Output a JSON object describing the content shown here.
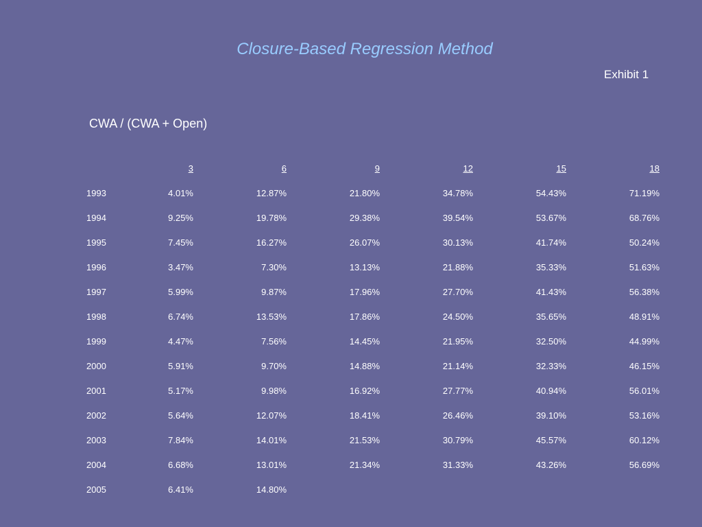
{
  "slide": {
    "title": "Closure-Based Regression Method",
    "exhibit": "Exhibit 1",
    "subtitle": "CWA / (CWA + Open)"
  },
  "table": {
    "columns": [
      "3",
      "6",
      "9",
      "12",
      "15",
      "18"
    ],
    "rows": [
      {
        "year": "1993",
        "values": [
          "4.01%",
          "12.87%",
          "21.80%",
          "34.78%",
          "54.43%",
          "71.19%"
        ]
      },
      {
        "year": "1994",
        "values": [
          "9.25%",
          "19.78%",
          "29.38%",
          "39.54%",
          "53.67%",
          "68.76%"
        ]
      },
      {
        "year": "1995",
        "values": [
          "7.45%",
          "16.27%",
          "26.07%",
          "30.13%",
          "41.74%",
          "50.24%"
        ]
      },
      {
        "year": "1996",
        "values": [
          "3.47%",
          "7.30%",
          "13.13%",
          "21.88%",
          "35.33%",
          "51.63%"
        ]
      },
      {
        "year": "1997",
        "values": [
          "5.99%",
          "9.87%",
          "17.96%",
          "27.70%",
          "41.43%",
          "56.38%"
        ]
      },
      {
        "year": "1998",
        "values": [
          "6.74%",
          "13.53%",
          "17.86%",
          "24.50%",
          "35.65%",
          "48.91%"
        ]
      },
      {
        "year": "1999",
        "values": [
          "4.47%",
          "7.56%",
          "14.45%",
          "21.95%",
          "32.50%",
          "44.99%"
        ]
      },
      {
        "year": "2000",
        "values": [
          "5.91%",
          "9.70%",
          "14.88%",
          "21.14%",
          "32.33%",
          "46.15%"
        ]
      },
      {
        "year": "2001",
        "values": [
          "5.17%",
          "9.98%",
          "16.92%",
          "27.77%",
          "40.94%",
          "56.01%"
        ]
      },
      {
        "year": "2002",
        "values": [
          "5.64%",
          "12.07%",
          "18.41%",
          "26.46%",
          "39.10%",
          "53.16%"
        ]
      },
      {
        "year": "2003",
        "values": [
          "7.84%",
          "14.01%",
          "21.53%",
          "30.79%",
          "45.57%",
          "60.12%"
        ]
      },
      {
        "year": "2004",
        "values": [
          "6.68%",
          "13.01%",
          "21.34%",
          "31.33%",
          "43.26%",
          "56.69%"
        ]
      },
      {
        "year": "2005",
        "values": [
          "6.41%",
          "14.80%"
        ]
      }
    ]
  }
}
